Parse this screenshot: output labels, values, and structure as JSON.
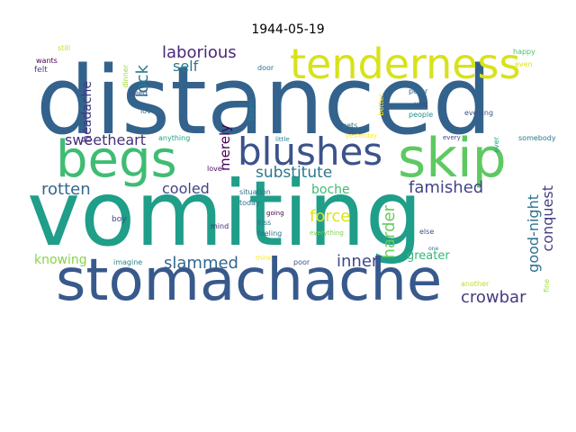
{
  "title": "1944-05-19",
  "words": [
    {
      "text": "distanced",
      "color": "#33638d"
    },
    {
      "text": "vomiting",
      "color": "#1f9e89"
    },
    {
      "text": "stomachache",
      "color": "#38598c"
    },
    {
      "text": "tenderness",
      "color": "#d8e219"
    },
    {
      "text": "begs",
      "color": "#3fbc73"
    },
    {
      "text": "skip",
      "color": "#5ec962"
    },
    {
      "text": "blushes",
      "color": "#3b528b"
    },
    {
      "text": "laborious",
      "color": "#482878"
    },
    {
      "text": "substitute",
      "color": "#2a788e"
    },
    {
      "text": "slammed",
      "color": "#31688e"
    },
    {
      "text": "famished",
      "color": "#414487"
    },
    {
      "text": "conquest",
      "color": "#433e85"
    },
    {
      "text": "good-night",
      "color": "#2c728e"
    },
    {
      "text": "crowbar",
      "color": "#443a83"
    },
    {
      "text": "inner",
      "color": "#3e4989"
    },
    {
      "text": "sweetheart",
      "color": "#472d7b"
    },
    {
      "text": "rotten",
      "color": "#31688e"
    },
    {
      "text": "cooled",
      "color": "#414487"
    },
    {
      "text": "force",
      "color": "#dde318"
    },
    {
      "text": "harder",
      "color": "#67cc5c"
    },
    {
      "text": "knowing",
      "color": "#86d549"
    },
    {
      "text": "lock",
      "color": "#2a788e"
    },
    {
      "text": "self",
      "color": "#2a788e"
    },
    {
      "text": "merely",
      "color": "#440154"
    },
    {
      "text": "headache",
      "color": "#453781"
    },
    {
      "text": "boche",
      "color": "#3fbc73"
    },
    {
      "text": "greater",
      "color": "#35b779"
    },
    {
      "text": "wants",
      "color": "#440154"
    },
    {
      "text": "still",
      "color": "#bddf26"
    },
    {
      "text": "felt",
      "color": "#433e85"
    },
    {
      "text": "need",
      "color": "#3b528b"
    },
    {
      "text": "loves",
      "color": "#2c728e"
    },
    {
      "text": "dinner",
      "color": "#9fda3a"
    },
    {
      "text": "door",
      "color": "#2c728e"
    },
    {
      "text": "beans",
      "color": "#25858e"
    },
    {
      "text": "better",
      "color": "#fde725"
    },
    {
      "text": "peter",
      "color": "#31688e"
    },
    {
      "text": "use",
      "color": "#3e4989"
    },
    {
      "text": "people",
      "color": "#21918c"
    },
    {
      "text": "evening",
      "color": "#3b528b"
    },
    {
      "text": "happy",
      "color": "#4ac16d"
    },
    {
      "text": "even",
      "color": "#dde318"
    },
    {
      "text": "anything",
      "color": "#20a386"
    },
    {
      "text": "little",
      "color": "#25858e"
    },
    {
      "text": "gets",
      "color": "#2c728e"
    },
    {
      "text": "yesterday",
      "color": "#fde725"
    },
    {
      "text": "every",
      "color": "#433e85"
    },
    {
      "text": "ever",
      "color": "#1f9e89"
    },
    {
      "text": "somebody",
      "color": "#2a788e"
    },
    {
      "text": "love",
      "color": "#471063"
    },
    {
      "text": "situation",
      "color": "#2c728e"
    },
    {
      "text": "today",
      "color": "#2c728e"
    },
    {
      "text": "boy",
      "color": "#3e4989"
    },
    {
      "text": "mind",
      "color": "#482878"
    },
    {
      "text": "going",
      "color": "#440154"
    },
    {
      "text": "kiss",
      "color": "#2a788e"
    },
    {
      "text": "feeling",
      "color": "#2c728e"
    },
    {
      "text": "everything",
      "color": "#7ad151"
    },
    {
      "text": "else",
      "color": "#3b528b"
    },
    {
      "text": "one",
      "color": "#2c728e"
    },
    {
      "text": "imagine",
      "color": "#25858e"
    },
    {
      "text": "think",
      "color": "#fde725"
    },
    {
      "text": "poor",
      "color": "#3b528b"
    },
    {
      "text": "another",
      "color": "#bddf26"
    },
    {
      "text": "fine",
      "color": "#9fda3a"
    }
  ]
}
